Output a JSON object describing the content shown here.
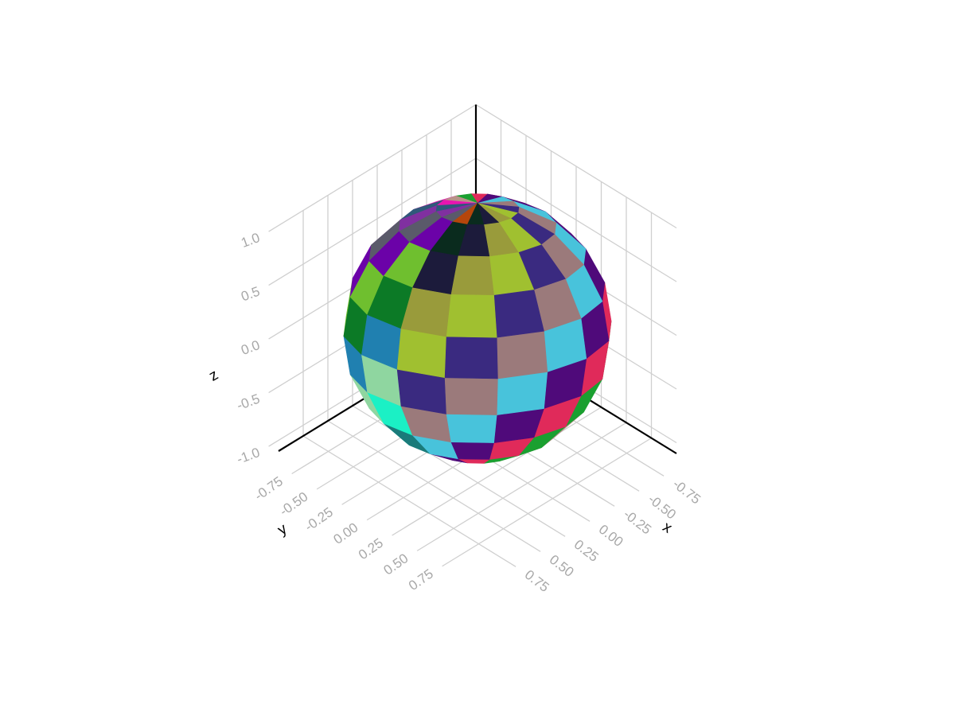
{
  "chart_data": {
    "type": "surface-mesh-3d",
    "description_free": true,
    "object": "sphere",
    "radius": 1,
    "center": [
      0,
      0,
      0
    ],
    "latitude_bands": 10,
    "longitude_segments": 16,
    "xlabel": "x",
    "ylabel": "y",
    "zlabel": "z",
    "xlim": [
      -1,
      1
    ],
    "ylim": [
      -1,
      1
    ],
    "zlim": [
      -1.1,
      1.1
    ],
    "xticks": [
      "-0.75",
      "-0.50",
      "-0.25",
      "0.00",
      "0.25",
      "0.50",
      "0.75"
    ],
    "yticks": [
      "-0.75",
      "-0.50",
      "-0.25",
      "0.00",
      "0.25",
      "0.50",
      "0.75"
    ],
    "zticks": [
      "-1.0",
      "-0.5",
      "0.0",
      "0.5",
      "1.0"
    ],
    "xtick_values": [
      -0.75,
      -0.5,
      -0.25,
      0,
      0.25,
      0.5,
      0.75
    ],
    "ytick_values": [
      -0.75,
      -0.5,
      -0.25,
      0,
      0.25,
      0.5,
      0.75
    ],
    "ztick_values": [
      -1,
      -0.5,
      0,
      0.5,
      1
    ],
    "grid": true,
    "face_colors": [
      "#b5460b",
      "#4f3cb5",
      "#7d5478",
      "#1bf0c5",
      "#6b02a8",
      "#b89389",
      "#9b7a7b",
      "#0a2b1e",
      "#5d8231",
      "#62b685",
      "#1a7b7a",
      "#6fbf2f",
      "#e815b0",
      "#48c3db",
      "#1c1b3b",
      "#6a3a72",
      "#26271a",
      "#7a6650",
      "#0c7a26",
      "#30587a",
      "#4f0a7a",
      "#999b3b",
      "#7a5a38",
      "#6b701f",
      "#4a9a6a",
      "#2080b0",
      "#8030a0",
      "#e02a5a",
      "#a0c030",
      "#d04020",
      "#a88cd0",
      "#283880",
      "#8fd6a0",
      "#5a5a6a",
      "#1aa030",
      "#3a2a80"
    ]
  }
}
